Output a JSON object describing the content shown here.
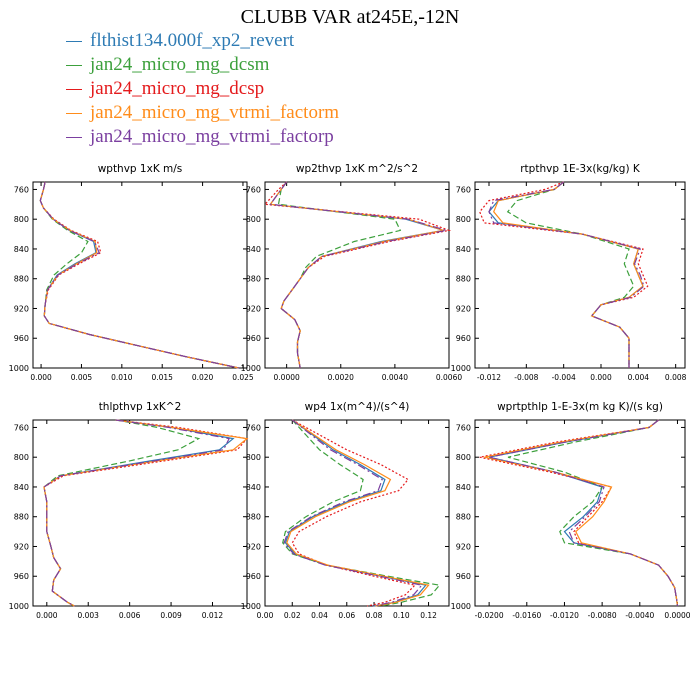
{
  "header": {
    "title": "CLUBB VAR at245E,-12N"
  },
  "legend": [
    {
      "label": "flthist134.000f_xp2_revert",
      "color": "#2e7bb4",
      "dash": ""
    },
    {
      "label": "jan24_micro_mg_dcsm",
      "color": "#3ca03c",
      "dash": "6,3"
    },
    {
      "label": "jan24_micro_mg_dcsp",
      "color": "#e41a1c",
      "dash": "2,2"
    },
    {
      "label": "jan24_micro_mg_vtrmi_factorm",
      "color": "#ff8c1a",
      "dash": ""
    },
    {
      "label": "jan24_micro_mg_vtrmi_factorp",
      "color": "#7b3fa0",
      "dash": "8,3,2,3"
    }
  ],
  "chart_data": [
    {
      "type": "line",
      "title": "wpthvp  1xK m/s",
      "ylim": [
        1000,
        750
      ],
      "yticks": [
        760,
        800,
        840,
        880,
        920,
        960,
        1000
      ],
      "ytick_labels": [
        "760",
        "800",
        "840",
        "880",
        "920",
        "960",
        "1000"
      ],
      "xlim": [
        -0.001,
        0.0255
      ],
      "xticks": [
        0.0,
        0.005,
        0.01,
        0.015,
        0.02,
        0.025
      ],
      "xtick_labels": [
        "0.000",
        "0.005",
        "0.010",
        "0.015",
        "0.020",
        "0.025"
      ],
      "y": [
        750,
        760,
        775,
        785,
        800,
        815,
        830,
        845,
        860,
        875,
        895,
        915,
        930,
        940,
        955,
        970,
        985,
        1000
      ],
      "series": [
        {
          "x": [
            0.0005,
            0.0003,
            -0.0001,
            0.0003,
            0.0015,
            0.0035,
            0.0065,
            0.0068,
            0.0042,
            0.002,
            0.0008,
            0.0005,
            0.0004,
            0.001,
            0.006,
            0.012,
            0.018,
            0.0245
          ]
        },
        {
          "x": [
            0.0005,
            0.0003,
            -0.0001,
            0.0003,
            0.0014,
            0.0033,
            0.0058,
            0.005,
            0.0032,
            0.0016,
            0.0007,
            0.0005,
            0.0004,
            0.001,
            0.006,
            0.012,
            0.018,
            0.0245
          ]
        },
        {
          "x": [
            0.0005,
            0.0003,
            -0.0001,
            0.0003,
            0.0016,
            0.0037,
            0.007,
            0.0074,
            0.0047,
            0.0022,
            0.0009,
            0.0005,
            0.0004,
            0.001,
            0.006,
            0.012,
            0.018,
            0.0245
          ]
        },
        {
          "x": [
            0.0005,
            0.0003,
            -0.0001,
            0.0003,
            0.0015,
            0.0036,
            0.0067,
            0.0069,
            0.0044,
            0.0021,
            0.0008,
            0.0005,
            0.0004,
            0.001,
            0.006,
            0.012,
            0.018,
            0.0245
          ]
        },
        {
          "x": [
            0.0005,
            0.0003,
            -0.0001,
            0.0003,
            0.0015,
            0.0035,
            0.0066,
            0.0072,
            0.0045,
            0.0021,
            0.0008,
            0.0005,
            0.0004,
            0.001,
            0.006,
            0.012,
            0.018,
            0.0245
          ]
        }
      ]
    },
    {
      "type": "line",
      "title": "wp2thvp  1xK m^2/s^2",
      "ylim": [
        1000,
        750
      ],
      "yticks": [
        760,
        800,
        840,
        880,
        920,
        960,
        1000
      ],
      "ytick_labels": [
        "760",
        "800",
        "840",
        "880",
        "920",
        "960",
        "1000"
      ],
      "xlim": [
        -0.0008,
        0.006
      ],
      "xticks": [
        0.0,
        0.002,
        0.004,
        0.006
      ],
      "xtick_labels": [
        "0.0000",
        "0.0020",
        "0.0040",
        "0.0060"
      ],
      "y": [
        750,
        760,
        780,
        800,
        815,
        830,
        850,
        865,
        880,
        895,
        910,
        920,
        935,
        950,
        965,
        980,
        1000
      ],
      "series": [
        {
          "x": [
            0.0,
            -0.0002,
            -0.0006,
            0.0044,
            0.0058,
            0.0035,
            0.0013,
            0.0008,
            0.0005,
            0.0002,
            -0.0001,
            -0.0002,
            0.0003,
            0.0005,
            0.0004,
            0.0004,
            0.0005
          ]
        },
        {
          "x": [
            0.0,
            -0.0002,
            -0.0003,
            0.004,
            0.0042,
            0.0025,
            0.0011,
            0.0007,
            0.0005,
            0.0002,
            -0.0001,
            -0.0002,
            0.0003,
            0.0005,
            0.0004,
            0.0004,
            0.0005
          ]
        },
        {
          "x": [
            0.0,
            -0.0003,
            -0.0008,
            0.0049,
            0.006,
            0.0038,
            0.0014,
            0.0008,
            0.0005,
            0.0002,
            -0.0001,
            -0.0002,
            0.0003,
            0.0005,
            0.0004,
            0.0004,
            0.0005
          ]
        },
        {
          "x": [
            0.0,
            -0.0002,
            -0.0006,
            0.0045,
            0.0058,
            0.0036,
            0.0013,
            0.0008,
            0.0005,
            0.0002,
            -0.0001,
            -0.0002,
            0.0003,
            0.0005,
            0.0004,
            0.0004,
            0.0005
          ]
        },
        {
          "x": [
            0.0,
            -0.0002,
            -0.0006,
            0.0045,
            0.0059,
            0.0037,
            0.0013,
            0.0008,
            0.0005,
            0.0002,
            -0.0001,
            -0.0002,
            0.0003,
            0.0005,
            0.0004,
            0.0004,
            0.0005
          ]
        }
      ]
    },
    {
      "type": "line",
      "title": "rtpthvp  1E-3x(kg/kg) K",
      "ylim": [
        1000,
        750
      ],
      "yticks": [
        760,
        800,
        840,
        880,
        920,
        960,
        1000
      ],
      "ytick_labels": [
        "760",
        "800",
        "840",
        "880",
        "920",
        "960",
        "1000"
      ],
      "xlim": [
        -0.0135,
        0.009
      ],
      "xticks": [
        -0.012,
        -0.008,
        -0.004,
        0.0,
        0.004,
        0.008
      ],
      "xtick_labels": [
        "-0.012",
        "-0.008",
        "-0.004",
        "0.000",
        "0.004",
        "0.008"
      ],
      "y": [
        750,
        760,
        775,
        790,
        805,
        820,
        840,
        860,
        875,
        890,
        905,
        915,
        930,
        945,
        960,
        975,
        990,
        1000
      ],
      "series": [
        {
          "x": [
            -0.004,
            -0.005,
            -0.011,
            -0.012,
            -0.011,
            -0.002,
            0.004,
            0.0035,
            0.004,
            0.0045,
            0.003,
            0.0,
            -0.001,
            0.002,
            0.003,
            0.003,
            0.003,
            0.003
          ]
        },
        {
          "x": [
            -0.004,
            -0.005,
            -0.009,
            -0.01,
            -0.008,
            -0.002,
            0.003,
            0.0025,
            0.003,
            0.0035,
            0.0025,
            0.0,
            -0.001,
            0.002,
            0.003,
            0.003,
            0.003,
            0.003
          ]
        },
        {
          "x": [
            -0.004,
            -0.006,
            -0.012,
            -0.013,
            -0.0125,
            -0.002,
            0.0045,
            0.004,
            0.0045,
            0.005,
            0.0035,
            0.0,
            -0.001,
            0.002,
            0.003,
            0.003,
            0.003,
            0.003
          ]
        },
        {
          "x": [
            -0.004,
            -0.005,
            -0.011,
            -0.0115,
            -0.0105,
            -0.002,
            0.004,
            0.0035,
            0.004,
            0.0045,
            0.003,
            0.0,
            -0.001,
            0.002,
            0.003,
            0.003,
            0.003,
            0.003
          ]
        },
        {
          "x": [
            -0.004,
            -0.005,
            -0.0115,
            -0.012,
            -0.0115,
            -0.002,
            0.0042,
            0.0036,
            0.0042,
            0.0046,
            0.0032,
            0.0,
            -0.001,
            0.002,
            0.003,
            0.003,
            0.003,
            0.003
          ]
        }
      ]
    },
    {
      "type": "line",
      "title": "thlpthvp  1xK^2",
      "ylim": [
        1000,
        750
      ],
      "yticks": [
        760,
        800,
        840,
        880,
        920,
        960,
        1000
      ],
      "ytick_labels": [
        "760",
        "800",
        "840",
        "880",
        "920",
        "960",
        "1000"
      ],
      "xlim": [
        -0.001,
        0.0145
      ],
      "xticks": [
        0.0,
        0.003,
        0.006,
        0.009,
        0.012
      ],
      "xtick_labels": [
        "0.000",
        "0.003",
        "0.006",
        "0.009",
        "0.012"
      ],
      "y": [
        750,
        760,
        775,
        790,
        805,
        825,
        840,
        860,
        880,
        900,
        920,
        935,
        950,
        965,
        980,
        995,
        1000
      ],
      "series": [
        {
          "x": [
            0.005,
            0.009,
            0.0135,
            0.0125,
            0.0075,
            0.001,
            -0.0002,
            0.0,
            0.0,
            0.0,
            0.0003,
            0.0005,
            0.001,
            0.0005,
            0.0004,
            0.0015,
            0.002
          ]
        },
        {
          "x": [
            0.005,
            0.008,
            0.011,
            0.0095,
            0.006,
            0.0008,
            -0.0002,
            0.0,
            0.0,
            0.0,
            0.0003,
            0.0005,
            0.001,
            0.0005,
            0.0004,
            0.0015,
            0.002
          ]
        },
        {
          "x": [
            0.005,
            0.0095,
            0.0145,
            0.0138,
            0.0085,
            0.0012,
            -0.0002,
            0.0,
            0.0,
            0.0,
            0.0003,
            0.0005,
            0.001,
            0.0005,
            0.0004,
            0.0015,
            0.002
          ]
        },
        {
          "x": [
            0.005,
            0.009,
            0.0145,
            0.0135,
            0.008,
            0.001,
            -0.0002,
            0.0,
            0.0,
            0.0,
            0.0003,
            0.0005,
            0.001,
            0.0005,
            0.0004,
            0.0015,
            0.002
          ]
        },
        {
          "x": [
            0.005,
            0.0088,
            0.0132,
            0.0128,
            0.0078,
            0.001,
            -0.0002,
            0.0,
            0.0,
            0.0,
            0.0003,
            0.0005,
            0.001,
            0.0005,
            0.0004,
            0.0015,
            0.002
          ]
        }
      ]
    },
    {
      "type": "line",
      "title": "wp4  1x(m^4)/(s^4)",
      "ylim": [
        1000,
        750
      ],
      "yticks": [
        760,
        800,
        840,
        880,
        920,
        960,
        1000
      ],
      "ytick_labels": [
        "760",
        "800",
        "840",
        "880",
        "920",
        "960",
        "1000"
      ],
      "xlim": [
        0.0,
        0.135
      ],
      "xticks": [
        0.0,
        0.02,
        0.04,
        0.06,
        0.08,
        0.1,
        0.12
      ],
      "xtick_labels": [
        "0.00",
        "0.02",
        "0.04",
        "0.06",
        "0.08",
        "0.10",
        "0.12"
      ],
      "y": [
        750,
        770,
        790,
        810,
        830,
        845,
        860,
        880,
        900,
        915,
        930,
        945,
        960,
        972,
        985,
        995,
        1000
      ],
      "series": [
        {
          "x": [
            0.02,
            0.035,
            0.05,
            0.07,
            0.088,
            0.085,
            0.06,
            0.035,
            0.018,
            0.015,
            0.022,
            0.045,
            0.085,
            0.118,
            0.112,
            0.095,
            0.08
          ]
        },
        {
          "x": [
            0.02,
            0.03,
            0.04,
            0.055,
            0.072,
            0.07,
            0.05,
            0.03,
            0.015,
            0.013,
            0.02,
            0.045,
            0.09,
            0.128,
            0.122,
            0.1,
            0.085
          ]
        },
        {
          "x": [
            0.02,
            0.04,
            0.06,
            0.085,
            0.105,
            0.098,
            0.07,
            0.045,
            0.025,
            0.02,
            0.025,
            0.045,
            0.08,
            0.11,
            0.103,
            0.088,
            0.075
          ]
        },
        {
          "x": [
            0.02,
            0.036,
            0.052,
            0.073,
            0.092,
            0.088,
            0.062,
            0.037,
            0.019,
            0.016,
            0.023,
            0.046,
            0.087,
            0.12,
            0.114,
            0.096,
            0.081
          ]
        },
        {
          "x": [
            0.02,
            0.034,
            0.048,
            0.068,
            0.086,
            0.083,
            0.058,
            0.034,
            0.017,
            0.014,
            0.021,
            0.044,
            0.084,
            0.115,
            0.109,
            0.093,
            0.079
          ]
        }
      ]
    },
    {
      "type": "line",
      "title": "wprtpthlp  1-E-3x(m kg K)/(s kg)",
      "ylim": [
        1000,
        750
      ],
      "yticks": [
        760,
        800,
        840,
        880,
        920,
        960,
        1000
      ],
      "ytick_labels": [
        "760",
        "800",
        "840",
        "880",
        "920",
        "960",
        "1000"
      ],
      "xlim": [
        -0.0215,
        0.0008
      ],
      "xticks": [
        -0.02,
        -0.016,
        -0.012,
        -0.008,
        -0.004,
        0.0
      ],
      "xtick_labels": [
        "-0.0200",
        "-0.0160",
        "-0.0120",
        "-0.0080",
        "-0.0040",
        "0.0000"
      ],
      "y": [
        750,
        760,
        780,
        800,
        820,
        840,
        860,
        880,
        900,
        915,
        930,
        945,
        960,
        975,
        990,
        1000
      ],
      "series": [
        {
          "x": [
            -0.002,
            -0.003,
            -0.012,
            -0.02,
            -0.013,
            -0.008,
            -0.0085,
            -0.01,
            -0.012,
            -0.011,
            -0.005,
            -0.002,
            -0.001,
            -0.0003,
            -0.0001,
            0.0
          ]
        },
        {
          "x": [
            -0.002,
            -0.003,
            -0.011,
            -0.018,
            -0.012,
            -0.008,
            -0.009,
            -0.011,
            -0.0125,
            -0.012,
            -0.005,
            -0.002,
            -0.001,
            -0.0003,
            -0.0001,
            0.0
          ]
        },
        {
          "x": [
            -0.002,
            -0.003,
            -0.013,
            -0.021,
            -0.0135,
            -0.007,
            -0.008,
            -0.0095,
            -0.011,
            -0.0105,
            -0.005,
            -0.002,
            -0.001,
            -0.0003,
            -0.0001,
            0.0
          ]
        },
        {
          "x": [
            -0.002,
            -0.003,
            -0.0125,
            -0.0205,
            -0.013,
            -0.007,
            -0.0078,
            -0.009,
            -0.0108,
            -0.0102,
            -0.005,
            -0.002,
            -0.001,
            -0.0003,
            -0.0001,
            0.0
          ]
        },
        {
          "x": [
            -0.002,
            -0.003,
            -0.012,
            -0.02,
            -0.013,
            -0.0078,
            -0.0083,
            -0.0098,
            -0.0115,
            -0.011,
            -0.005,
            -0.002,
            -0.001,
            -0.0003,
            -0.0001,
            0.0
          ]
        }
      ]
    }
  ]
}
